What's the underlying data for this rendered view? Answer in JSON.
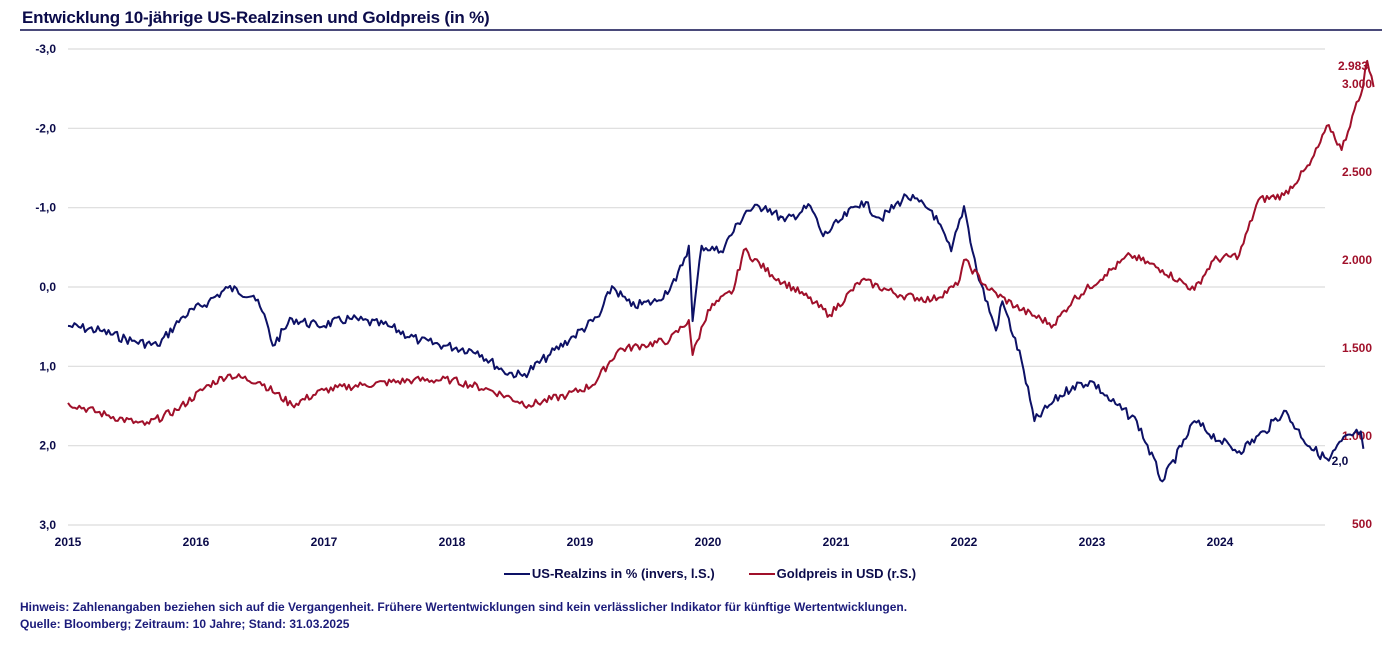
{
  "chart_data": {
    "type": "line",
    "title": "Entwicklung 10-jährige US-Realzinsen und Goldpreis (in %)",
    "xlabel": "",
    "x_ticks": [
      "2015",
      "2016",
      "2017",
      "2018",
      "2019",
      "2020",
      "2021",
      "2022",
      "2023",
      "2024"
    ],
    "xlim": [
      2015.0,
      2025.2
    ],
    "left_axis": {
      "label": "US-Realzins in % (invers)",
      "inverted": true,
      "ylim": [
        -3.0,
        3.0
      ],
      "ticks": [
        "-3,0",
        "-2,0",
        "-1,0",
        "0,0",
        "1,0",
        "2,0",
        "3,0"
      ],
      "tick_values": [
        -3,
        -2,
        -1,
        0,
        1,
        2,
        3
      ]
    },
    "right_axis": {
      "label": "Goldpreis in USD",
      "ylim": [
        500,
        3200
      ],
      "ticks": [
        "500",
        "1.000",
        "1.500",
        "2.000",
        "2.500",
        "3.000"
      ],
      "tick_values": [
        500,
        1000,
        1500,
        2000,
        2500,
        3000
      ]
    },
    "grid": true,
    "legend_position": "bottom-center",
    "series": [
      {
        "name": "US-Realzins in % (invers, l.S.)",
        "axis": "left",
        "color": "#0d1166",
        "end_label": "2,0",
        "x": [
          2015.0,
          2015.25,
          2015.5,
          2015.7,
          2015.9,
          2016.1,
          2016.25,
          2016.45,
          2016.55,
          2016.6,
          2016.75,
          2016.95,
          2017.2,
          2017.5,
          2017.75,
          2017.95,
          2018.2,
          2018.4,
          2018.55,
          2018.75,
          2018.95,
          2019.15,
          2019.25,
          2019.4,
          2019.6,
          2019.75,
          2019.85,
          2019.88,
          2019.95,
          2020.1,
          2020.3,
          2020.45,
          2020.6,
          2020.8,
          2020.9,
          2021.05,
          2021.2,
          2021.35,
          2021.55,
          2021.75,
          2021.9,
          2022.0,
          2022.1,
          2022.25,
          2022.3,
          2022.45,
          2022.55,
          2022.7,
          2022.85,
          2023.0,
          2023.15,
          2023.35,
          2023.55,
          2023.7,
          2023.8,
          2024.0,
          2024.15,
          2024.35,
          2024.5,
          2024.7,
          2024.85,
          2024.95,
          2025.1,
          2025.12
        ],
        "values": [
          0.49,
          0.55,
          0.68,
          0.74,
          0.37,
          0.18,
          0.01,
          0.11,
          0.43,
          0.74,
          0.4,
          0.49,
          0.4,
          0.49,
          0.68,
          0.74,
          0.81,
          1.06,
          1.12,
          0.87,
          0.62,
          0.37,
          -0.01,
          0.24,
          0.18,
          -0.08,
          -0.52,
          0.43,
          -0.52,
          -0.45,
          -0.96,
          -1.02,
          -0.83,
          -1.02,
          -0.64,
          -0.86,
          -1.08,
          -0.86,
          -1.15,
          -0.96,
          -0.45,
          -1.02,
          -0.2,
          0.55,
          0.18,
          0.93,
          1.69,
          1.44,
          1.25,
          1.19,
          1.44,
          1.69,
          2.45,
          2.01,
          1.69,
          1.94,
          2.07,
          1.82,
          1.56,
          2.01,
          2.19,
          1.94,
          1.82,
          2.04
        ]
      },
      {
        "name": "Goldpreis in USD (r.S.)",
        "axis": "right",
        "color": "#a0102a",
        "end_labels": [
          "2.983",
          "3.000"
        ],
        "x": [
          2015.0,
          2015.3,
          2015.6,
          2015.85,
          2016.1,
          2016.25,
          2016.5,
          2016.75,
          2017.0,
          2017.3,
          2017.7,
          2018.0,
          2018.3,
          2018.6,
          2018.9,
          2019.1,
          2019.3,
          2019.5,
          2019.7,
          2019.85,
          2019.88,
          2020.0,
          2020.2,
          2020.28,
          2020.5,
          2020.75,
          2020.95,
          2021.2,
          2021.5,
          2021.75,
          2021.95,
          2022.0,
          2022.2,
          2022.45,
          2022.7,
          2022.85,
          2023.1,
          2023.3,
          2023.55,
          2023.8,
          2023.95,
          2024.15,
          2024.3,
          2024.5,
          2024.7,
          2024.85,
          2024.95,
          2025.05,
          2025.1,
          2025.15,
          2025.2
        ],
        "values": [
          1188,
          1119,
          1063,
          1148,
          1290,
          1347,
          1307,
          1176,
          1261,
          1290,
          1318,
          1318,
          1261,
          1176,
          1233,
          1290,
          1489,
          1517,
          1545,
          1659,
          1460,
          1716,
          1830,
          2057,
          1915,
          1801,
          1688,
          1886,
          1801,
          1773,
          1858,
          2000,
          1830,
          1716,
          1631,
          1773,
          1915,
          2028,
          1943,
          1830,
          2000,
          2028,
          2341,
          2369,
          2540,
          2767,
          2625,
          2852,
          2937,
          3131,
          2983
        ]
      }
    ]
  },
  "header": {
    "title": "Entwicklung 10-jährige US-Realzinsen und Goldpreis (in %)"
  },
  "legend": {
    "items": [
      {
        "label": "US-Realzins in % (invers, l.S.)",
        "color": "#0d1166"
      },
      {
        "label": "Goldpreis in USD (r.S.)",
        "color": "#a0102a"
      }
    ]
  },
  "footer": {
    "hinweis": "Hinweis: Zahlenangaben beziehen sich auf die Vergangenheit. Frühere Wertentwicklungen sind kein verlässlicher Indikator für künftige Wertentwicklungen.",
    "quelle": "Quelle: Bloomberg; Zeitraum: 10 Jahre; Stand: 31.03.2025"
  }
}
